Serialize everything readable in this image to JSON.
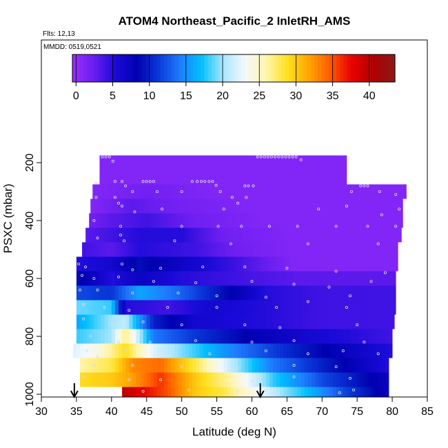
{
  "title": "ATOM4 Northeast_Pacific_2 InletRH_AMS",
  "subtitle_flights": "Flts: 12,13",
  "subtitle_dates": "MMDD: 0519,0521",
  "chart_data": {
    "type": "heatmap",
    "title": "ATOM4 Northeast_Pacific_2 InletRH_AMS",
    "xlabel": "Latitude (deg N)",
    "ylabel": "PSXC (mbar)",
    "xlim": [
      30,
      85
    ],
    "ylim": [
      1000,
      0
    ],
    "x_ticks": [
      30,
      35,
      40,
      45,
      50,
      55,
      60,
      65,
      70,
      75,
      80,
      85
    ],
    "y_ticks": [
      200,
      400,
      600,
      800,
      1000
    ],
    "colorbar": {
      "range": [
        -0.5,
        43.5
      ],
      "ticks": [
        0,
        5,
        10,
        15,
        20,
        25,
        30,
        35,
        40
      ],
      "colors": [
        "#9b30ff",
        "#6a1df0",
        "#1a0ad8",
        "#0000b0",
        "#0a38d8",
        "#1e7cff",
        "#00bfff",
        "#a8e6ff",
        "#f4f8ff",
        "#fff6b0",
        "#ffe020",
        "#ffa500",
        "#ff5a00",
        "#e80000",
        "#b00000",
        "#8b1a1a"
      ]
    },
    "arrows_latitude": [
      34.7,
      61.2
    ],
    "rows": [
      {
        "p": 200,
        "xmin": 38.3,
        "xmax": 73.5,
        "v": [
          [
            38.3,
            1
          ],
          [
            73.5,
            1
          ]
        ]
      },
      {
        "p": 250,
        "xmin": 38.3,
        "xmax": 73.5,
        "v": [
          [
            38.3,
            1
          ],
          [
            73.5,
            1
          ]
        ]
      },
      {
        "p": 300,
        "xmin": 37.3,
        "xmax": 82.0,
        "v": [
          [
            37.3,
            1
          ],
          [
            45,
            2
          ],
          [
            55,
            1
          ],
          [
            82,
            1
          ]
        ]
      },
      {
        "p": 350,
        "xmin": 37.0,
        "xmax": 81.5,
        "v": [
          [
            37,
            1
          ],
          [
            43,
            3
          ],
          [
            48,
            2
          ],
          [
            60,
            1
          ],
          [
            81.5,
            1
          ]
        ]
      },
      {
        "p": 400,
        "xmin": 36.8,
        "xmax": 81.5,
        "v": [
          [
            36.8,
            2
          ],
          [
            40,
            3
          ],
          [
            45,
            4
          ],
          [
            52,
            2
          ],
          [
            62,
            1
          ],
          [
            81.5,
            1
          ]
        ]
      },
      {
        "p": 450,
        "xmin": 36.3,
        "xmax": 81.3,
        "v": [
          [
            36.3,
            3
          ],
          [
            40,
            4
          ],
          [
            44,
            5
          ],
          [
            50,
            5
          ],
          [
            56,
            2
          ],
          [
            66,
            1
          ],
          [
            81.3,
            1
          ]
        ]
      },
      {
        "p": 500,
        "xmin": 35.8,
        "xmax": 80.8,
        "v": [
          [
            35.8,
            4
          ],
          [
            40,
            3
          ],
          [
            44,
            5
          ],
          [
            52,
            4
          ],
          [
            58,
            2
          ],
          [
            66,
            1
          ],
          [
            80.8,
            1
          ]
        ]
      },
      {
        "p": 550,
        "xmin": 35.0,
        "xmax": 80.8,
        "v": [
          [
            35,
            5
          ],
          [
            40,
            6
          ],
          [
            44,
            9
          ],
          [
            52,
            6
          ],
          [
            58,
            4
          ],
          [
            66,
            1
          ],
          [
            80.8,
            1
          ]
        ]
      },
      {
        "p": 600,
        "xmin": 35.0,
        "xmax": 80.5,
        "v": [
          [
            35,
            9
          ],
          [
            40,
            5
          ],
          [
            44,
            7
          ],
          [
            50,
            5
          ],
          [
            58,
            4
          ],
          [
            66,
            3
          ],
          [
            74,
            3
          ],
          [
            80.5,
            3
          ]
        ]
      },
      {
        "p": 650,
        "xmin": 35.0,
        "xmax": 80.5,
        "v": [
          [
            35,
            12
          ],
          [
            40,
            11
          ],
          [
            44,
            16
          ],
          [
            50,
            13
          ],
          [
            56,
            9
          ],
          [
            62,
            5
          ],
          [
            70,
            4
          ],
          [
            80.5,
            4
          ]
        ]
      },
      {
        "p": 700,
        "xmin": 35.0,
        "xmax": 80.5,
        "v": [
          [
            35,
            19
          ],
          [
            40,
            18
          ],
          [
            42,
            5
          ],
          [
            48,
            4
          ],
          [
            54,
            6
          ],
          [
            62,
            5
          ],
          [
            70,
            4
          ],
          [
            80.5,
            4
          ]
        ]
      },
      {
        "p": 750,
        "xmin": 35.0,
        "xmax": 80.3,
        "v": [
          [
            35,
            16
          ],
          [
            40,
            20
          ],
          [
            42,
            21
          ],
          [
            46,
            10
          ],
          [
            52,
            6
          ],
          [
            62,
            5
          ],
          [
            70,
            4
          ],
          [
            80.3,
            4
          ]
        ]
      },
      {
        "p": 800,
        "xmin": 35.0,
        "xmax": 80.0,
        "v": [
          [
            35,
            18
          ],
          [
            40,
            20
          ],
          [
            42,
            27
          ],
          [
            46,
            14
          ],
          [
            52,
            11
          ],
          [
            60,
            8
          ],
          [
            68,
            6
          ],
          [
            80,
            4
          ]
        ]
      },
      {
        "p": 850,
        "xmin": 34.5,
        "xmax": 80.0,
        "v": [
          [
            34.5,
            22
          ],
          [
            38,
            24
          ],
          [
            42,
            29
          ],
          [
            46,
            22
          ],
          [
            52,
            18
          ],
          [
            58,
            14
          ],
          [
            66,
            10
          ],
          [
            74,
            7
          ],
          [
            80,
            5
          ]
        ]
      },
      {
        "p": 900,
        "xmin": 35.5,
        "xmax": 79.5,
        "v": [
          [
            35.5,
            26
          ],
          [
            40,
            28
          ],
          [
            43,
            33
          ],
          [
            47,
            34
          ],
          [
            52,
            28
          ],
          [
            57,
            21
          ],
          [
            63,
            14
          ],
          [
            70,
            10
          ],
          [
            79.5,
            5
          ]
        ]
      },
      {
        "p": 950,
        "xmin": 35.5,
        "xmax": 79.5,
        "v": [
          [
            35.5,
            29
          ],
          [
            40,
            30
          ],
          [
            43,
            32
          ],
          [
            47,
            36
          ],
          [
            52,
            30
          ],
          [
            57,
            26
          ],
          [
            63,
            18
          ],
          [
            70,
            12
          ],
          [
            79.5,
            7
          ]
        ]
      },
      {
        "p": 1000,
        "xmin": 41.5,
        "xmax": 79.5,
        "v": [
          [
            41.5,
            40
          ],
          [
            44,
            38
          ],
          [
            48,
            35
          ],
          [
            52,
            30
          ],
          [
            56,
            28
          ],
          [
            60,
            24
          ],
          [
            64,
            20
          ],
          [
            68,
            17
          ],
          [
            73,
            12
          ],
          [
            79.5,
            7
          ]
        ]
      }
    ],
    "sample_points": [
      [
        38.7,
        180
      ],
      [
        39.2,
        180
      ],
      [
        39.7,
        180
      ],
      [
        40.2,
        195
      ],
      [
        60.8,
        180
      ],
      [
        61.3,
        180
      ],
      [
        61.8,
        180
      ],
      [
        62.3,
        180
      ],
      [
        62.8,
        180
      ],
      [
        63.3,
        180
      ],
      [
        63.8,
        180
      ],
      [
        64.3,
        180
      ],
      [
        64.8,
        180
      ],
      [
        65.3,
        180
      ],
      [
        65.8,
        180
      ],
      [
        66.3,
        180
      ],
      [
        67.0,
        190
      ],
      [
        37.8,
        270
      ],
      [
        40.5,
        265
      ],
      [
        41.5,
        265
      ],
      [
        42.0,
        280
      ],
      [
        44.5,
        265
      ],
      [
        45.0,
        265
      ],
      [
        45.5,
        265
      ],
      [
        46.0,
        265
      ],
      [
        51.5,
        265
      ],
      [
        52.2,
        265
      ],
      [
        52.8,
        265
      ],
      [
        53.3,
        265
      ],
      [
        53.9,
        265
      ],
      [
        54.4,
        265
      ],
      [
        54.9,
        278
      ],
      [
        59.0,
        280
      ],
      [
        59.5,
        280
      ],
      [
        60.2,
        280
      ],
      [
        75.5,
        280
      ],
      [
        76.0,
        280
      ],
      [
        76.5,
        280
      ],
      [
        37.8,
        320
      ],
      [
        40.5,
        320
      ],
      [
        41.0,
        340
      ],
      [
        43.0,
        300
      ],
      [
        46.5,
        300
      ],
      [
        50.0,
        300
      ],
      [
        55.5,
        300
      ],
      [
        57.2,
        320
      ],
      [
        59.2,
        320
      ],
      [
        74.2,
        300
      ],
      [
        78.2,
        300
      ],
      [
        80.5,
        310
      ],
      [
        41.5,
        350
      ],
      [
        43.3,
        370
      ],
      [
        47.2,
        360
      ],
      [
        56.0,
        360
      ],
      [
        58.0,
        340
      ],
      [
        69.5,
        360
      ],
      [
        73.5,
        350
      ],
      [
        78.5,
        380
      ],
      [
        81.0,
        360
      ],
      [
        37.5,
        400
      ],
      [
        41.3,
        420
      ],
      [
        50.0,
        420
      ],
      [
        55.2,
        420
      ],
      [
        58.5,
        420
      ],
      [
        62.5,
        420
      ],
      [
        66.5,
        420
      ],
      [
        72.0,
        420
      ],
      [
        76.5,
        420
      ],
      [
        80.5,
        420
      ],
      [
        38.0,
        460
      ],
      [
        41.3,
        450
      ],
      [
        41.8,
        470
      ],
      [
        49.0,
        470
      ],
      [
        57.0,
        480
      ],
      [
        68.0,
        480
      ],
      [
        78.0,
        480
      ],
      [
        35.3,
        550
      ],
      [
        36.3,
        560
      ],
      [
        41.5,
        550
      ],
      [
        43.0,
        570
      ],
      [
        47.0,
        565
      ],
      [
        53.0,
        560
      ],
      [
        59.0,
        560
      ],
      [
        65.0,
        565
      ],
      [
        72.0,
        575
      ],
      [
        79.0,
        580
      ],
      [
        35.8,
        590
      ],
      [
        37.5,
        600
      ],
      [
        41.0,
        595
      ],
      [
        46.0,
        610
      ],
      [
        52.0,
        615
      ],
      [
        60.0,
        610
      ],
      [
        66.0,
        620
      ],
      [
        71.0,
        630
      ],
      [
        77.0,
        610
      ],
      [
        35.5,
        640
      ],
      [
        38.0,
        640
      ],
      [
        43.0,
        650
      ],
      [
        49.5,
        650
      ],
      [
        55.0,
        660
      ],
      [
        62.0,
        665
      ],
      [
        68.0,
        680
      ],
      [
        74.0,
        660
      ],
      [
        36.0,
        690
      ],
      [
        39.0,
        700
      ],
      [
        42.5,
        710
      ],
      [
        48.0,
        700
      ],
      [
        55.0,
        700
      ],
      [
        63.5,
        700
      ],
      [
        73.5,
        700
      ],
      [
        36.0,
        740
      ],
      [
        40.0,
        760
      ],
      [
        44.5,
        750
      ],
      [
        50.0,
        760
      ],
      [
        59.0,
        760
      ],
      [
        64.0,
        770
      ],
      [
        75.0,
        760
      ],
      [
        37.0,
        800
      ],
      [
        41.0,
        820
      ],
      [
        45.5,
        820
      ],
      [
        52.0,
        815
      ],
      [
        60.0,
        820
      ],
      [
        66.0,
        815
      ],
      [
        76.0,
        820
      ],
      [
        36.5,
        850
      ],
      [
        38.0,
        870
      ],
      [
        42.0,
        850
      ],
      [
        47.0,
        850
      ],
      [
        54.0,
        860
      ],
      [
        62.0,
        850
      ],
      [
        68.0,
        860
      ],
      [
        73.0,
        850
      ],
      [
        78.0,
        860
      ],
      [
        37.5,
        900
      ],
      [
        43.0,
        900
      ],
      [
        50.0,
        905
      ],
      [
        58.0,
        910
      ],
      [
        66.0,
        900
      ],
      [
        72.0,
        905
      ],
      [
        36.0,
        940
      ],
      [
        42.5,
        950
      ],
      [
        47.0,
        950
      ],
      [
        55.0,
        955
      ],
      [
        60.0,
        955
      ],
      [
        66.0,
        940
      ],
      [
        74.0,
        945
      ],
      [
        44.5,
        990
      ],
      [
        51.0,
        985
      ],
      [
        58.0,
        990
      ],
      [
        62.0,
        985
      ],
      [
        72.5,
        995
      ],
      [
        74.5,
        985
      ]
    ]
  }
}
